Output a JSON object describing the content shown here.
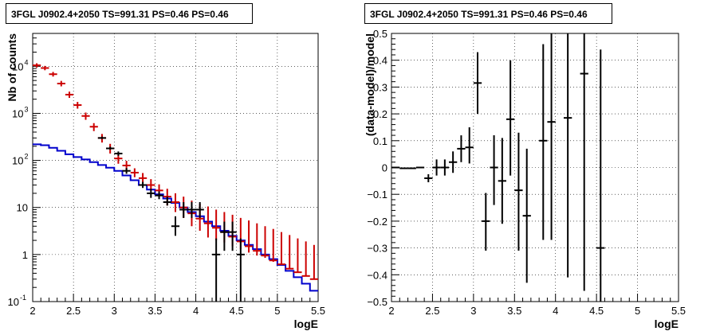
{
  "chart_data": [
    {
      "type": "line",
      "title": "3FGL J0902.4+2050 TS=991.31 PS=0.46 PS=0.46",
      "xlabel": "logE",
      "ylabel": "Nb of counts",
      "xlim": [
        2,
        5.5
      ],
      "ylim": [
        0.1,
        50000
      ],
      "yscale": "log",
      "grid": true,
      "x_ticks": [
        "2",
        "2.5",
        "3",
        "3.5",
        "4",
        "4.5",
        "5",
        "5.5"
      ],
      "y_ticks": [
        {
          "value": 0.1,
          "base": "10",
          "exp": "-1"
        },
        {
          "value": 1,
          "base": "1",
          "exp": ""
        },
        {
          "value": 10,
          "base": "10",
          "exp": ""
        },
        {
          "value": 100,
          "base": "10",
          "exp": "2"
        },
        {
          "value": 1000,
          "base": "10",
          "exp": "3"
        },
        {
          "value": 10000,
          "base": "10",
          "exp": "4"
        }
      ],
      "bin_edges": [
        2.0,
        2.1,
        2.2,
        2.3,
        2.4,
        2.5,
        2.6,
        2.7,
        2.8,
        2.9,
        3.0,
        3.1,
        3.2,
        3.3,
        3.4,
        3.5,
        3.6,
        3.7,
        3.8,
        3.9,
        4.0,
        4.1,
        4.2,
        4.3,
        4.4,
        4.5,
        4.6,
        4.7,
        4.8,
        4.9,
        5.0,
        5.1,
        5.2,
        5.3,
        5.4,
        5.5
      ],
      "series": [
        {
          "type": "step",
          "color": "#0000cc",
          "values": [
            220,
            210,
            185,
            160,
            135,
            118,
            105,
            92,
            80,
            70,
            60,
            48,
            38,
            30,
            24,
            19,
            15.5,
            12.5,
            10,
            8,
            6.5,
            5,
            4,
            3.2,
            2.5,
            2,
            1.6,
            1.3,
            1,
            0.8,
            0.6,
            0.45,
            0.33,
            0.24,
            0.17
          ]
        },
        {
          "type": "errorbars",
          "color": "#cc0000",
          "x": [
            2.05,
            2.15,
            2.25,
            2.35,
            2.45,
            2.55,
            2.65,
            2.75,
            2.85,
            2.95,
            3.05,
            3.15,
            3.25,
            3.35,
            3.45,
            3.55,
            3.65,
            3.75,
            3.85,
            3.95,
            4.05,
            4.15,
            4.25,
            4.35,
            4.45,
            4.55,
            4.65,
            4.75,
            4.85,
            4.95,
            5.05,
            5.15,
            5.25,
            5.35,
            5.45
          ],
          "y": [
            10500,
            9200,
            6800,
            4300,
            2500,
            1500,
            880,
            520,
            300,
            180,
            110,
            78,
            55,
            42,
            30,
            23,
            17,
            13,
            10,
            7.5,
            5.8,
            4.6,
            3.7,
            3,
            2.4,
            1.9,
            1.5,
            1.2,
            0.95,
            0.75,
            0.62,
            0.5,
            0.42,
            0.35,
            0.3
          ],
          "yerr_low": [
            9400,
            8250,
            6050,
            3750,
            2130,
            1260,
            730,
            420,
            240,
            140,
            85,
            62,
            44,
            33,
            23,
            17,
            11,
            8,
            6,
            4,
            3.2,
            2.3,
            2,
            1.8,
            1.5,
            1.3,
            1.1,
            0.95,
            0.85,
            0.7,
            0.62,
            0.5,
            0.42,
            0.35,
            0.3
          ],
          "yerr_high": [
            11600,
            10200,
            7600,
            4900,
            2900,
            1750,
            1040,
            620,
            365,
            225,
            140,
            98,
            68,
            54,
            40,
            31,
            25,
            20,
            17,
            14,
            12,
            10.5,
            9,
            8,
            7,
            6,
            5.3,
            4.6,
            4,
            3.5,
            3,
            2.6,
            2.2,
            1.9,
            1.6
          ]
        },
        {
          "type": "errorbars",
          "color": "#000000",
          "x": [
            2.85,
            2.95,
            3.05,
            3.15,
            3.35,
            3.45,
            3.55,
            3.65,
            3.75,
            3.85,
            3.95,
            4.05,
            4.25,
            4.35,
            4.45,
            4.55
          ],
          "y": [
            300,
            180,
            140,
            60,
            30,
            20,
            18,
            13,
            4,
            9,
            9,
            9,
            1,
            3,
            3,
            1
          ],
          "yerr_low": [
            285,
            170,
            125,
            52,
            26,
            16,
            15,
            11,
            2.5,
            6,
            6,
            6,
            0.1,
            1.2,
            1.2,
            0.1
          ],
          "yerr_high": [
            320,
            195,
            155,
            69,
            35,
            25,
            22,
            17,
            6.5,
            13,
            13,
            13,
            2.2,
            5,
            5,
            2.2
          ]
        }
      ]
    },
    {
      "type": "scatter",
      "title": "3FGL J0902.4+2050 TS=991.31 PS=0.46 PS=0.46",
      "xlabel": "logE",
      "ylabel": "(data-model)/model",
      "xlim": [
        2,
        5.5
      ],
      "ylim": [
        -0.5,
        0.5
      ],
      "grid": true,
      "x_ticks": [
        "2",
        "2.5",
        "3",
        "3.5",
        "4",
        "4.5",
        "5",
        "5.5"
      ],
      "y_ticks": [
        "−0.5",
        "−0.4",
        "−0.3",
        "−0.2",
        "−0.1",
        "0",
        "0.1",
        "0.2",
        "0.3",
        "0.4",
        "0.5"
      ],
      "series": [
        {
          "color": "#000000",
          "points": [
            {
              "x": 2.05,
              "y": 0.0,
              "lo": 0.0,
              "hi": 0.0
            },
            {
              "x": 2.15,
              "y": -0.003,
              "lo": -0.003,
              "hi": -0.003
            },
            {
              "x": 2.25,
              "y": -0.003,
              "lo": -0.003,
              "hi": -0.003
            },
            {
              "x": 2.35,
              "y": 0.0,
              "lo": 0.0,
              "hi": 0.0
            },
            {
              "x": 2.45,
              "y": -0.04,
              "lo": -0.055,
              "hi": -0.025
            },
            {
              "x": 2.55,
              "y": 0.0,
              "lo": -0.03,
              "hi": 0.03
            },
            {
              "x": 2.65,
              "y": 0.0,
              "lo": -0.03,
              "hi": 0.03
            },
            {
              "x": 2.75,
              "y": 0.02,
              "lo": -0.02,
              "hi": 0.06
            },
            {
              "x": 2.85,
              "y": 0.07,
              "lo": 0.02,
              "hi": 0.12
            },
            {
              "x": 2.95,
              "y": 0.075,
              "lo": 0.015,
              "hi": 0.15
            },
            {
              "x": 3.05,
              "y": 0.315,
              "lo": 0.2,
              "hi": 0.43
            },
            {
              "x": 3.15,
              "y": -0.2,
              "lo": -0.31,
              "hi": -0.095
            },
            {
              "x": 3.25,
              "y": 0.0,
              "lo": -0.14,
              "hi": 0.12
            },
            {
              "x": 3.35,
              "y": -0.05,
              "lo": -0.21,
              "hi": 0.11
            },
            {
              "x": 3.45,
              "y": 0.18,
              "lo": -0.03,
              "hi": 0.4
            },
            {
              "x": 3.55,
              "y": -0.085,
              "lo": -0.31,
              "hi": 0.13
            },
            {
              "x": 3.65,
              "y": -0.18,
              "lo": -0.43,
              "hi": 0.07
            },
            {
              "x": 3.85,
              "y": 0.1,
              "lo": -0.27,
              "hi": 0.46
            },
            {
              "x": 3.95,
              "y": 0.17,
              "lo": -0.27,
              "hi": 0.5
            },
            {
              "x": 4.15,
              "y": 0.185,
              "lo": -0.41,
              "hi": 0.5
            },
            {
              "x": 4.35,
              "y": 0.35,
              "lo": -0.46,
              "hi": 0.5
            },
            {
              "x": 4.55,
              "y": -0.3,
              "lo": -0.5,
              "hi": 0.44
            }
          ]
        }
      ]
    }
  ]
}
